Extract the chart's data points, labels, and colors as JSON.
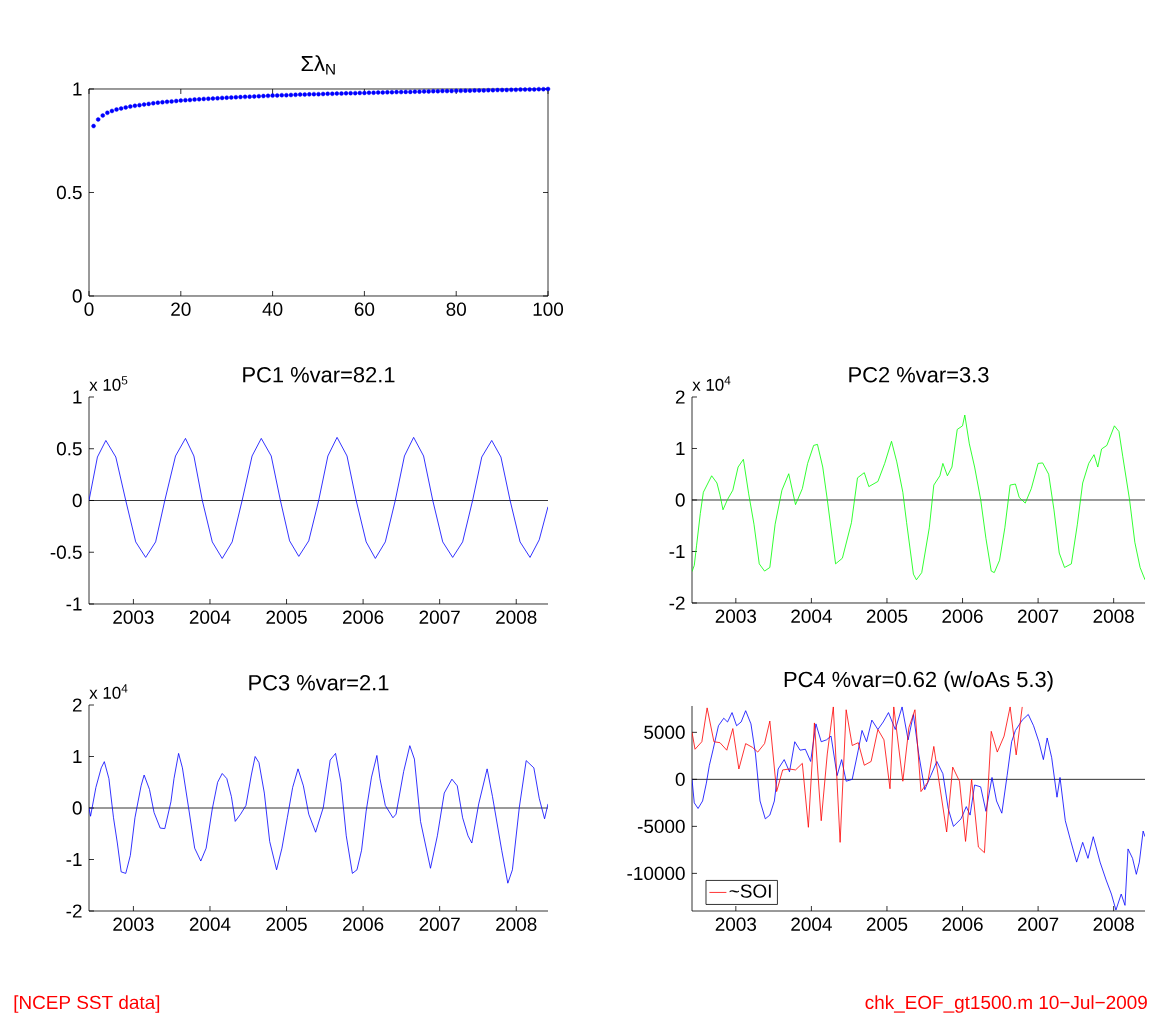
{
  "chart_data": [
    {
      "type": "scatter",
      "title": "Σλ$_{N}$",
      "marker": "circle",
      "color": "#0000ff",
      "xlim": [
        0,
        100
      ],
      "xticks": [
        0,
        20,
        40,
        60,
        80,
        100
      ],
      "ylim": [
        0,
        1
      ],
      "yticks": [
        0,
        0.5,
        1
      ],
      "x": [
        1,
        2,
        3,
        4,
        5,
        6,
        7,
        8,
        9,
        10,
        11,
        12,
        13,
        14,
        15,
        16,
        17,
        18,
        19,
        20,
        21,
        22,
        23,
        24,
        25,
        26,
        27,
        28,
        29,
        30,
        31,
        32,
        33,
        34,
        35,
        36,
        37,
        38,
        39,
        40,
        41,
        42,
        43,
        44,
        45,
        46,
        47,
        48,
        49,
        50,
        51,
        52,
        53,
        54,
        55,
        56,
        57,
        58,
        59,
        60,
        61,
        62,
        63,
        64,
        65,
        66,
        67,
        68,
        69,
        70,
        71,
        72,
        73,
        74,
        75,
        76,
        77,
        78,
        79,
        80,
        81,
        82,
        83,
        84,
        85,
        86,
        87,
        88,
        89,
        90,
        91,
        92,
        93,
        94,
        95,
        96,
        97,
        98,
        99,
        100
      ],
      "values": [
        0.821,
        0.853,
        0.872,
        0.885,
        0.894,
        0.901,
        0.906,
        0.911,
        0.915,
        0.919,
        0.922,
        0.925,
        0.928,
        0.931,
        0.934,
        0.936,
        0.938,
        0.94,
        0.942,
        0.944,
        0.946,
        0.947,
        0.949,
        0.95,
        0.952,
        0.953,
        0.954,
        0.955,
        0.957,
        0.958,
        0.959,
        0.96,
        0.961,
        0.962,
        0.963,
        0.964,
        0.965,
        0.966,
        0.967,
        0.968,
        0.969,
        0.97,
        0.97,
        0.971,
        0.972,
        0.973,
        0.973,
        0.974,
        0.975,
        0.975,
        0.976,
        0.977,
        0.977,
        0.978,
        0.978,
        0.979,
        0.98,
        0.98,
        0.981,
        0.981,
        0.982,
        0.982,
        0.983,
        0.983,
        0.984,
        0.984,
        0.985,
        0.985,
        0.986,
        0.986,
        0.987,
        0.987,
        0.988,
        0.988,
        0.989,
        0.989,
        0.99,
        0.99,
        0.99,
        0.991,
        0.991,
        0.992,
        0.992,
        0.993,
        0.993,
        0.993,
        0.994,
        0.994,
        0.995,
        0.995,
        0.995,
        0.996,
        0.996,
        0.997,
        0.997,
        0.998,
        0.998,
        0.999,
        0.999,
        1.0
      ]
    },
    {
      "type": "line",
      "title": "PC1  %var=82.1",
      "annotations": [
        "x 10$^{5}$"
      ],
      "xlim": [
        2002.42,
        2008.415
      ],
      "xticks": [
        2003,
        2004,
        2005,
        2006,
        2007,
        2008
      ],
      "ylim": [
        -1,
        1
      ],
      "yticks": [
        -1,
        -0.5,
        0,
        0.5,
        1
      ],
      "ref_lines": [
        {
          "axis": "y",
          "value": 0,
          "color": "#000000"
        }
      ],
      "x": [
        2002.42,
        2002.53,
        2002.64,
        2002.77,
        2002.9,
        2003.03,
        2003.16,
        2003.29,
        2003.41,
        2003.55,
        2003.68,
        2003.79,
        2003.9,
        2004.03,
        2004.16,
        2004.29,
        2004.42,
        2004.55,
        2004.67,
        2004.8,
        2004.92,
        2005.04,
        2005.16,
        2005.29,
        2005.42,
        2005.54,
        2005.66,
        2005.79,
        2005.91,
        2006.04,
        2006.16,
        2006.29,
        2006.42,
        2006.54,
        2006.66,
        2006.79,
        2006.91,
        2007.04,
        2007.17,
        2007.3,
        2007.43,
        2007.55,
        2007.68,
        2007.8,
        2007.92,
        2008.05,
        2008.18,
        2008.3,
        2008.415
      ],
      "series": [
        {
          "color": "#0000ff",
          "values": [
            0,
            0.42,
            0.58,
            0.42,
            0,
            -0.4,
            -0.55,
            -0.4,
            0,
            0.43,
            0.6,
            0.43,
            0,
            -0.4,
            -0.56,
            -0.4,
            0,
            0.43,
            0.6,
            0.43,
            0,
            -0.39,
            -0.54,
            -0.39,
            0,
            0.43,
            0.61,
            0.43,
            0,
            -0.4,
            -0.56,
            -0.4,
            0,
            0.43,
            0.61,
            0.43,
            0,
            -0.4,
            -0.55,
            -0.4,
            0,
            0.42,
            0.58,
            0.42,
            0,
            -0.4,
            -0.55,
            -0.38,
            -0.06
          ]
        }
      ]
    },
    {
      "type": "line",
      "title": "PC2  %var=3.3",
      "annotations": [
        "x 10$^{4}$"
      ],
      "xlim": [
        2002.42,
        2008.415
      ],
      "xticks": [
        2003,
        2004,
        2005,
        2006,
        2007,
        2008
      ],
      "ylim": [
        -2,
        2
      ],
      "yticks": [
        -2,
        -1,
        0,
        1,
        2
      ],
      "ref_lines": [
        {
          "axis": "y",
          "value": 0,
          "color": "#000000"
        }
      ],
      "x": [
        2002.42,
        2002.45,
        2002.48,
        2002.53,
        2002.57,
        2002.68,
        2002.75,
        2002.79,
        2002.83,
        2002.89,
        2002.96,
        2003.03,
        2003.1,
        2003.17,
        2003.24,
        2003.31,
        2003.38,
        2003.45,
        2003.52,
        2003.61,
        2003.7,
        2003.79,
        2003.88,
        2003.95,
        2004.03,
        2004.08,
        2004.15,
        2004.21,
        2004.32,
        2004.41,
        2004.53,
        2004.61,
        2004.7,
        2004.76,
        2004.88,
        2004.97,
        2005.06,
        2005.13,
        2005.21,
        2005.26,
        2005.35,
        2005.39,
        2005.46,
        2005.56,
        2005.62,
        2005.7,
        2005.74,
        2005.8,
        2005.86,
        2005.93,
        2006.0,
        2006.03,
        2006.09,
        2006.16,
        2006.24,
        2006.31,
        2006.38,
        2006.42,
        2006.49,
        2006.56,
        2006.63,
        2006.7,
        2006.75,
        2006.83,
        2006.91,
        2007.0,
        2007.06,
        2007.14,
        2007.21,
        2007.28,
        2007.35,
        2007.44,
        2007.52,
        2007.59,
        2007.67,
        2007.74,
        2007.79,
        2007.84,
        2007.91,
        2008.01,
        2008.07,
        2008.12,
        2008.21,
        2008.28,
        2008.35,
        2008.415
      ],
      "series": [
        {
          "color": "#00ff00",
          "values": [
            -1.39,
            -1.27,
            -0.89,
            -0.26,
            0.15,
            0.47,
            0.33,
            0.1,
            -0.19,
            0.01,
            0.19,
            0.64,
            0.79,
            0.12,
            -0.47,
            -1.24,
            -1.38,
            -1.31,
            -0.47,
            0.19,
            0.51,
            -0.09,
            0.22,
            0.71,
            1.06,
            1.08,
            0.64,
            0.01,
            -1.24,
            -1.13,
            -0.44,
            0.43,
            0.53,
            0.26,
            0.36,
            0.71,
            1.14,
            0.74,
            0.15,
            -0.44,
            -1.44,
            -1.55,
            -1.41,
            -0.54,
            0.29,
            0.47,
            0.71,
            0.47,
            0.64,
            1.37,
            1.44,
            1.65,
            1.09,
            0.64,
            0.01,
            -0.75,
            -1.38,
            -1.41,
            -1.17,
            -0.54,
            0.29,
            0.31,
            0.05,
            -0.06,
            0.22,
            0.71,
            0.72,
            0.5,
            -0.19,
            -1.03,
            -1.31,
            -1.24,
            -0.47,
            0.33,
            0.71,
            0.88,
            0.64,
            0.99,
            1.06,
            1.44,
            1.33,
            0.85,
            0.01,
            -0.82,
            -1.31,
            -1.55
          ]
        }
      ]
    },
    {
      "type": "line",
      "title": "PC3  %var=2.1",
      "annotations": [
        "x 10$^{4}$"
      ],
      "xlim": [
        2002.42,
        2008.415
      ],
      "xticks": [
        2003,
        2004,
        2005,
        2006,
        2007,
        2008
      ],
      "ylim": [
        -2,
        2
      ],
      "yticks": [
        -2,
        -1,
        0,
        1,
        2
      ],
      "ref_lines": [
        {
          "axis": "y",
          "value": 0,
          "color": "#000000"
        }
      ],
      "x": [
        2002.42,
        2002.44,
        2002.51,
        2002.58,
        2002.62,
        2002.68,
        2002.74,
        2002.79,
        2002.84,
        2002.9,
        2002.96,
        2003.02,
        2003.1,
        2003.14,
        2003.21,
        2003.27,
        2003.35,
        2003.41,
        2003.49,
        2003.53,
        2003.59,
        2003.64,
        2003.72,
        2003.8,
        2003.88,
        2003.95,
        2004.03,
        2004.1,
        2004.16,
        2004.22,
        2004.28,
        2004.33,
        2004.4,
        2004.47,
        2004.54,
        2004.59,
        2004.64,
        2004.71,
        2004.78,
        2004.87,
        2004.94,
        2005.01,
        2005.08,
        2005.15,
        2005.22,
        2005.29,
        2005.38,
        2005.48,
        2005.57,
        2005.64,
        2005.71,
        2005.78,
        2005.86,
        2005.92,
        2005.98,
        2006.04,
        2006.11,
        2006.18,
        2006.22,
        2006.29,
        2006.39,
        2006.43,
        2006.53,
        2006.61,
        2006.67,
        2006.75,
        2006.88,
        2006.97,
        2007.06,
        2007.16,
        2007.23,
        2007.3,
        2007.37,
        2007.42,
        2007.51,
        2007.62,
        2007.69,
        2007.81,
        2007.89,
        2007.95,
        2008.04,
        2008.13,
        2008.23,
        2008.3,
        2008.37,
        2008.415
      ],
      "series": [
        {
          "color": "#0000ff",
          "values": [
            0,
            -0.16,
            0.4,
            0.78,
            0.9,
            0.57,
            -0.19,
            -0.68,
            -1.24,
            -1.27,
            -0.92,
            -0.19,
            0.43,
            0.64,
            0.36,
            -0.09,
            -0.39,
            -0.4,
            0.12,
            0.57,
            1.06,
            0.78,
            0.01,
            -0.78,
            -1.03,
            -0.78,
            -0.02,
            0.5,
            0.67,
            0.57,
            0.22,
            -0.26,
            -0.12,
            0.05,
            0.64,
            1.0,
            0.88,
            0.29,
            -0.65,
            -1.2,
            -0.78,
            -0.19,
            0.4,
            0.76,
            0.43,
            -0.12,
            -0.47,
            0.01,
            0.93,
            1.06,
            0.5,
            -0.54,
            -1.27,
            -1.2,
            -0.82,
            -0.06,
            0.6,
            1.02,
            0.57,
            0.05,
            -0.19,
            -0.12,
            0.71,
            1.21,
            0.95,
            -0.26,
            -1.17,
            -0.54,
            0.29,
            0.56,
            0.43,
            -0.19,
            -0.54,
            -0.68,
            0.08,
            0.76,
            0.22,
            -0.82,
            -1.46,
            -1.2,
            0.01,
            0.92,
            0.78,
            0.19,
            -0.21,
            0.08
          ]
        }
      ]
    },
    {
      "type": "line",
      "title": "PC4  %var=0.62 (w/oAs 5.3)",
      "legend": "bottom left",
      "xlim": [
        2002.42,
        2008.415
      ],
      "xticks": [
        2003,
        2004,
        2005,
        2006,
        2007,
        2008
      ],
      "ylim": [
        -14000,
        7800
      ],
      "yticks": [
        -10000,
        -5000,
        0,
        5000
      ],
      "ref_lines": [
        {
          "axis": "y",
          "value": 0,
          "color": "#000000"
        }
      ],
      "x": [
        2002.42,
        2002.45,
        2002.5,
        2002.56,
        2002.61,
        2002.65,
        2002.7,
        2002.77,
        2002.84,
        2002.89,
        2002.95,
        2003.01,
        2003.07,
        2003.13,
        2003.2,
        2003.26,
        2003.32,
        2003.39,
        2003.45,
        2003.51,
        2003.56,
        2003.64,
        2003.71,
        2003.78,
        2003.85,
        2003.92,
        2003.99,
        2004.06,
        2004.13,
        2004.2,
        2004.26,
        2004.34,
        2004.4,
        2004.46,
        2004.54,
        2004.62,
        2004.67,
        2004.73,
        2004.8,
        2004.88,
        2004.95,
        2005.02,
        2005.11,
        2005.2,
        2005.28,
        2005.35,
        2005.42,
        2005.5,
        2005.58,
        2005.66,
        2005.74,
        2005.81,
        2005.88,
        2005.98,
        2006.05,
        2006.1,
        2006.16,
        2006.24,
        2006.31,
        2006.39,
        2006.45,
        2006.52,
        2006.59,
        2006.65,
        2006.7,
        2006.79,
        2006.87,
        2006.94,
        2007.01,
        2007.07,
        2007.12,
        2007.18,
        2007.25,
        2007.29,
        2007.36,
        2007.43,
        2007.51,
        2007.59,
        2007.66,
        2007.73,
        2007.82,
        2007.9,
        2007.97,
        2008.03,
        2008.1,
        2008.15,
        2008.19,
        2008.25,
        2008.3,
        2008.34,
        2008.39,
        2008.415
      ],
      "series": [
        {
          "color": "#0000ff",
          "values": [
            0,
            -2500,
            -3100,
            -2300,
            -400,
            1500,
            3200,
            5700,
            6500,
            6100,
            7100,
            5700,
            6100,
            7300,
            5900,
            2700,
            -2300,
            -4200,
            -3800,
            -2300,
            1100,
            2100,
            800,
            4000,
            3100,
            3200,
            1900,
            5900,
            4000,
            4200,
            4600,
            400,
            2100,
            -200,
            0,
            3100,
            5200,
            4000,
            6300,
            5300,
            6100,
            7100,
            5300,
            7700,
            4200,
            6900,
            2700,
            -1100,
            400,
            1900,
            600,
            -3100,
            -5000,
            -4200,
            -2900,
            -3800,
            -600,
            -800,
            -3400,
            200,
            -2300,
            -3600,
            400,
            4000,
            5200,
            6300,
            6900,
            5700,
            4000,
            2100,
            4400,
            2300,
            -1900,
            200,
            -4400,
            -6500,
            -8800,
            -6700,
            -8400,
            -6100,
            -8800,
            -10700,
            -12200,
            -13900,
            -12200,
            -13400,
            -7400,
            -8400,
            -10100,
            -8800,
            -5500,
            -6100
          ]
        },
        {
          "name": "~SOI",
          "color": "#ff0000",
          "x": [
            2002.42,
            2002.46,
            2002.55,
            2002.62,
            2002.71,
            2002.79,
            2002.88,
            2002.96,
            2003.04,
            2003.13,
            2003.22,
            2003.29,
            2003.38,
            2003.45,
            2003.54,
            2003.62,
            2003.71,
            2003.79,
            2003.88,
            2003.96,
            2004.04,
            2004.13,
            2004.21,
            2004.29,
            2004.38,
            2004.46,
            2004.54,
            2004.62,
            2004.7,
            2004.79,
            2004.88,
            2004.96,
            2005.04,
            2005.09,
            2005.21,
            2005.29,
            2005.37,
            2005.45,
            2005.54,
            2005.62,
            2005.7,
            2005.79,
            2005.87,
            2005.96,
            2006.04,
            2006.12,
            2006.21,
            2006.29,
            2006.38,
            2006.46,
            2006.55,
            2006.63,
            2006.71,
            2006.79
          ],
          "values": [
            5000,
            3200,
            4000,
            7600,
            4000,
            3900,
            3100,
            5400,
            1100,
            3800,
            3400,
            2900,
            3800,
            6200,
            -1300,
            1000,
            1100,
            1000,
            1700,
            -5100,
            6000,
            -4400,
            2700,
            7700,
            -6700,
            7400,
            3600,
            3900,
            1500,
            1900,
            5300,
            4200,
            -1000,
            7700,
            -200,
            5500,
            7400,
            -1300,
            -300,
            3500,
            -800,
            -5600,
            1300,
            -200,
            -6600,
            0,
            -7200,
            -7800,
            5100,
            2900,
            4600,
            7700,
            2600,
            7700
          ]
        }
      ]
    },
    {
      "type": "other",
      "annotations": [
        "[NCEP SST data]",
        "chk_EOF_gt1500.m   10−Jul−2009"
      ]
    }
  ]
}
